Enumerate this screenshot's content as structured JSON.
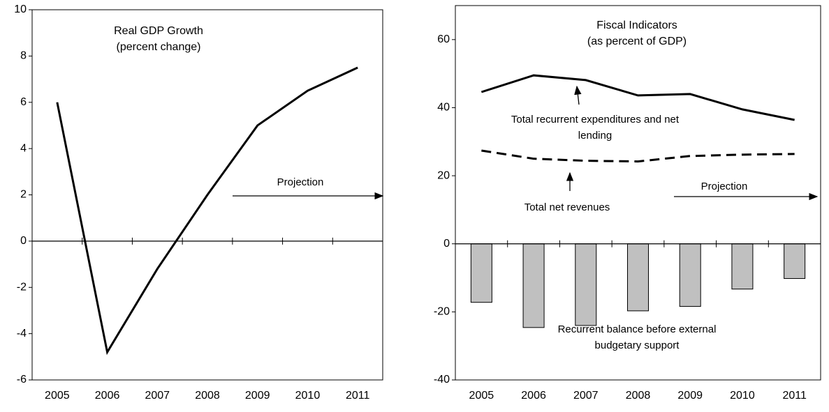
{
  "chart_data": [
    {
      "type": "line",
      "title": "Real GDP Growth",
      "subtitle": "(percent change)",
      "categories": [
        "2005",
        "2006",
        "2007",
        "2008",
        "2009",
        "2010",
        "2011"
      ],
      "series": [
        {
          "name": null,
          "color": "#000000",
          "dash": false,
          "values": [
            6.0,
            -4.8,
            -1.2,
            2.0,
            5.0,
            6.5,
            7.5
          ]
        }
      ],
      "ylim": [
        -6,
        10
      ],
      "yticks": [
        -6,
        -4,
        -2,
        0,
        2,
        4,
        6,
        8,
        10
      ],
      "annotations": [
        "Projection"
      ]
    },
    {
      "type": "combo",
      "title": "Fiscal Indicators",
      "subtitle": "(as percent of GDP)",
      "categories": [
        "2005",
        "2006",
        "2007",
        "2008",
        "2009",
        "2010",
        "2011"
      ],
      "series": [
        {
          "name": "Total recurrent expenditures and net lending",
          "type": "line",
          "color": "#000000",
          "dash": false,
          "values": [
            44.6,
            49.5,
            48.1,
            43.6,
            44.0,
            39.5,
            36.4
          ]
        },
        {
          "name": "Total net revenues",
          "type": "line",
          "color": "#000000",
          "dash": true,
          "values": [
            27.4,
            25.0,
            24.4,
            24.2,
            25.8,
            26.2,
            26.4
          ]
        },
        {
          "name": "Recurrent balance before external budgetary support",
          "type": "bar",
          "color": "#c0c0c0",
          "values": [
            -17.2,
            -24.6,
            -24.0,
            -19.7,
            -18.4,
            -13.3,
            -10.2
          ]
        }
      ],
      "ylim": [
        -40,
        70
      ],
      "yticks": [
        -40,
        -20,
        0,
        20,
        40,
        60
      ],
      "annotations": [
        "Projection"
      ]
    }
  ]
}
